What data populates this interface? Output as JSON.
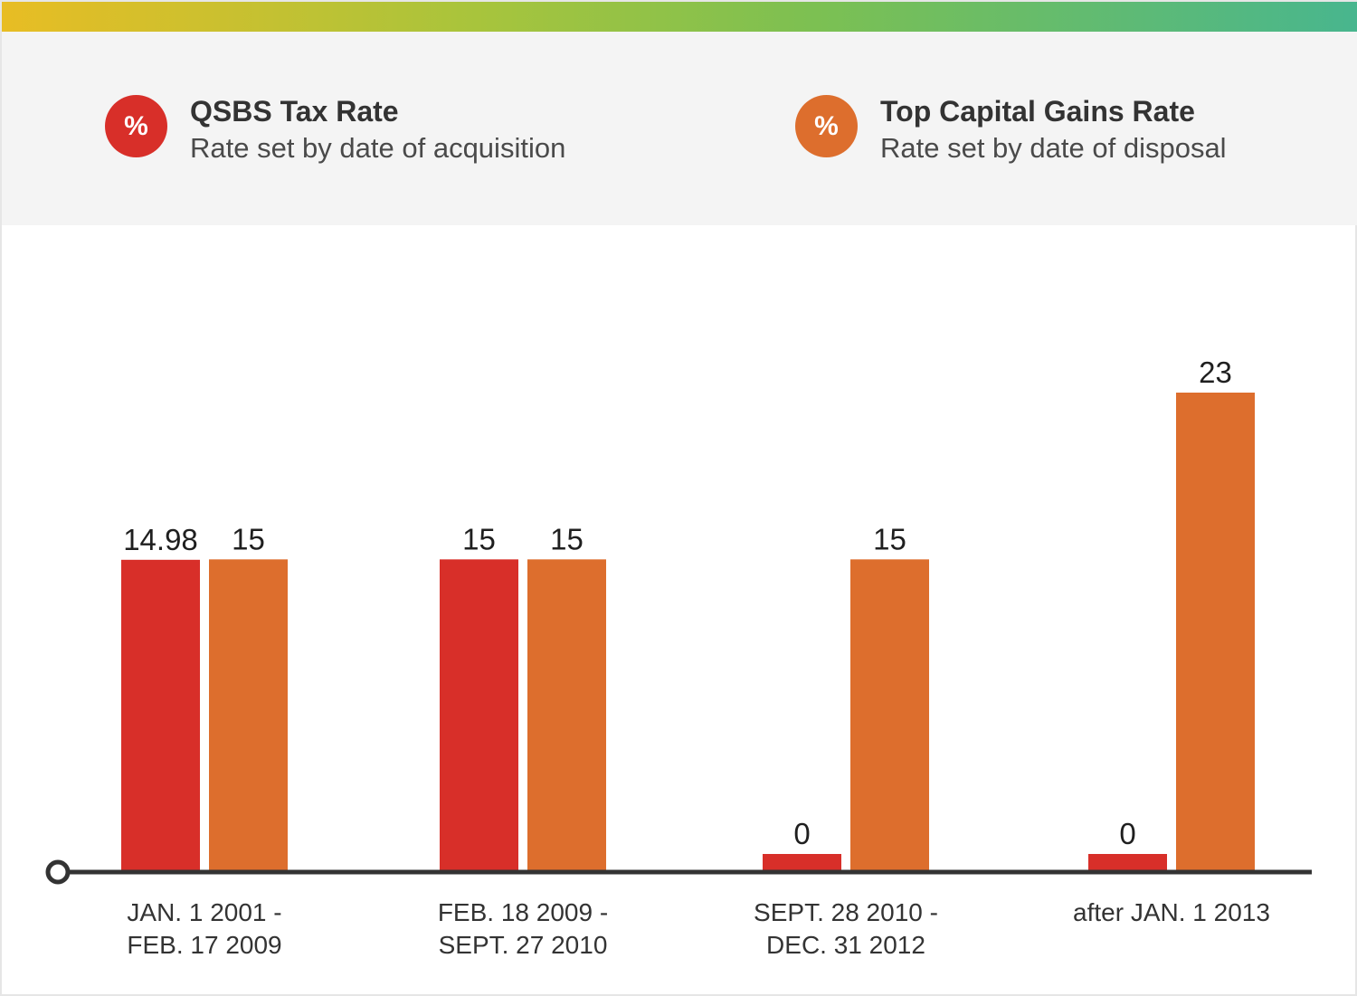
{
  "legend": {
    "qsbs": {
      "badge": "%",
      "title": "QSBS Tax Rate",
      "subtitle": "Rate set by date of acquisition",
      "color": "#d82f29"
    },
    "capgains": {
      "badge": "%",
      "title": "Top Capital Gains Rate",
      "subtitle": "Rate set by date of disposal",
      "color": "#dd6e2d"
    }
  },
  "chart_data": {
    "type": "bar",
    "categories": [
      [
        "JAN. 1 2001 -",
        "FEB. 17 2009"
      ],
      [
        "FEB. 18 2009 -",
        "SEPT. 27 2010"
      ],
      [
        "SEPT. 28 2010 -",
        "DEC. 31 2012"
      ],
      [
        "after JAN. 1 2013"
      ]
    ],
    "series": [
      {
        "name": "QSBS Tax Rate",
        "values": [
          14.98,
          15,
          0,
          0
        ],
        "labels": [
          "14.98",
          "15",
          "0",
          "0"
        ],
        "color": "#d82f29"
      },
      {
        "name": "Top Capital Gains Rate",
        "values": [
          15,
          15,
          15,
          23
        ],
        "labels": [
          "15",
          "15",
          "15",
          "23"
        ],
        "color": "#dd6e2d"
      }
    ],
    "title": "",
    "xlabel": "",
    "ylabel": "",
    "ylim": [
      0,
      23
    ],
    "grid": false,
    "legend": "top"
  }
}
